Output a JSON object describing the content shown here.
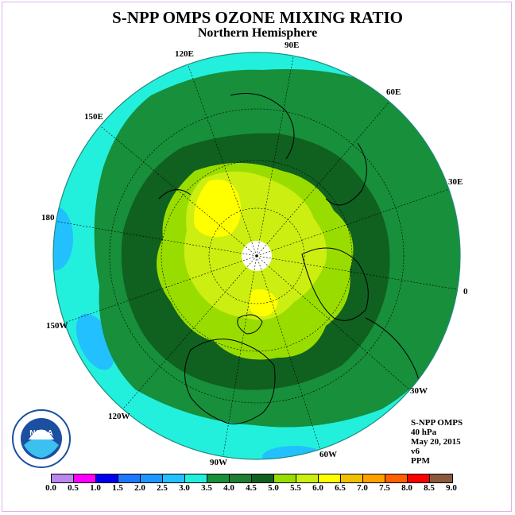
{
  "title": "S-NPP OMPS OZONE MIXING RATIO",
  "subtitle": "Northern Hemisphere",
  "longitude_labels": [
    "120E",
    "90E",
    "60E",
    "150E",
    "30E",
    "180",
    "0",
    "150W",
    "30W",
    "120W",
    "60W",
    "90W"
  ],
  "info": {
    "instrument": "S-NPP OMPS",
    "level": "40 hPa",
    "date": "May 20, 2015",
    "version": "v6",
    "units": "PPM"
  },
  "logo_text": "NOAA",
  "colorbar": {
    "ticks": [
      "0.0",
      "0.5",
      "1.0",
      "1.5",
      "2.0",
      "2.5",
      "3.0",
      "3.5",
      "4.0",
      "4.5",
      "5.0",
      "5.5",
      "6.0",
      "6.5",
      "7.0",
      "7.5",
      "8.0",
      "8.5",
      "9.0"
    ],
    "colors": [
      "#bb88ee",
      "#ddaaf4",
      "#ff00ff",
      "#0000ee",
      "#1e78ff",
      "#1e96ff",
      "#22c0ff",
      "#22f0dd",
      "#178f3b",
      "#1e7f32",
      "#106020",
      "#99dd00",
      "#ccee11",
      "#ffff00",
      "#f0c000",
      "#ffa000",
      "#ff6000",
      "#ff0000",
      "#8b5a3c"
    ]
  }
}
